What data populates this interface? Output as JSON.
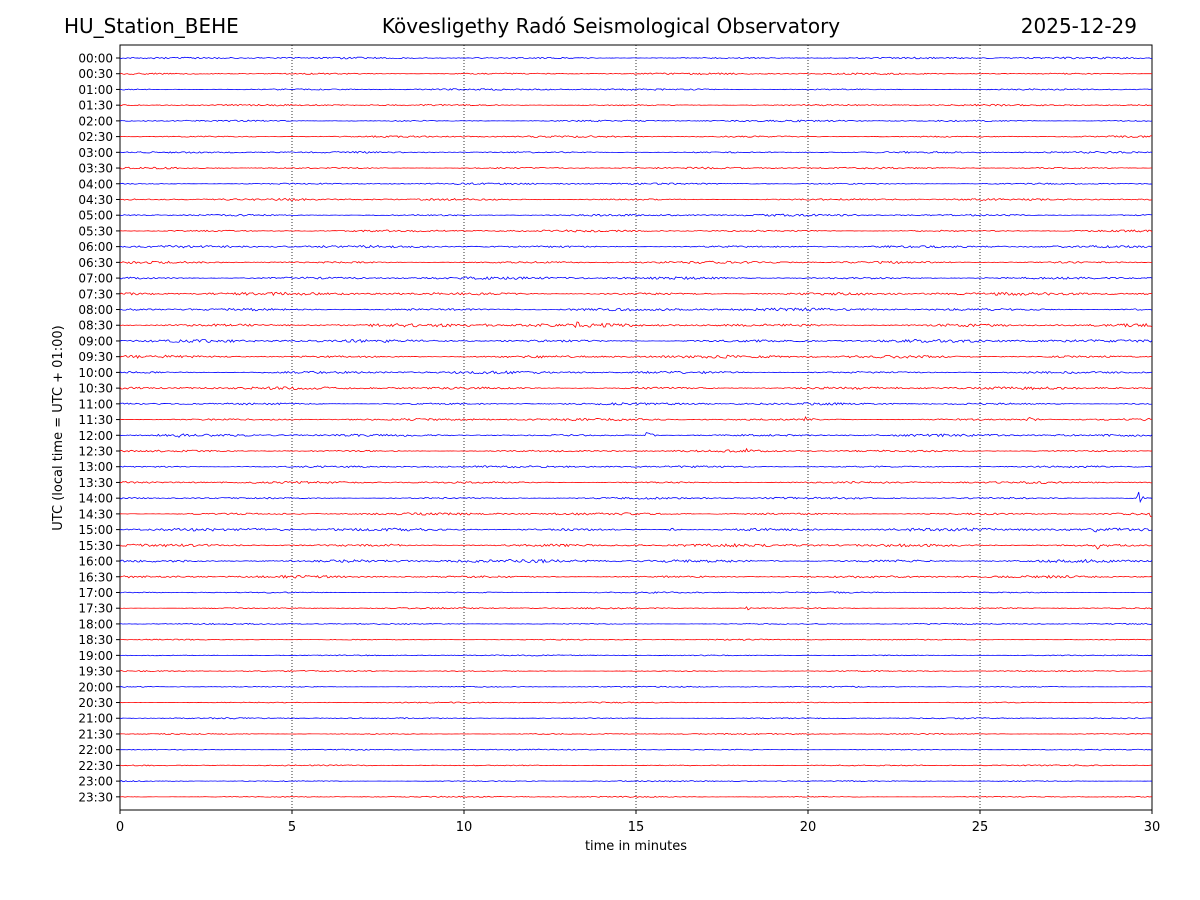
{
  "header": {
    "station": "HU_Station_BEHE",
    "title": "Kövesligethy Radó Seismological Observatory",
    "date": "2025-12-29"
  },
  "chart_data": {
    "type": "line",
    "title": "Kövesligethy Radó Seismological Observatory",
    "xlabel": "time in minutes",
    "ylabel": "UTC (local time = UTC + 01:00)",
    "xlim": [
      0,
      30
    ],
    "xticks": [
      0,
      5,
      10,
      15,
      20,
      25,
      30
    ],
    "grid": "vertical dotted at 5-minute ticks",
    "colors": [
      "#0000ff",
      "#ff0000"
    ],
    "rows": [
      "00:00",
      "00:30",
      "01:00",
      "01:30",
      "02:00",
      "02:30",
      "03:00",
      "03:30",
      "04:00",
      "04:30",
      "05:00",
      "05:30",
      "06:00",
      "06:30",
      "07:00",
      "07:30",
      "08:00",
      "08:30",
      "09:00",
      "09:30",
      "10:00",
      "10:30",
      "11:00",
      "11:30",
      "12:00",
      "12:30",
      "13:00",
      "13:30",
      "14:00",
      "14:30",
      "15:00",
      "15:30",
      "16:00",
      "16:30",
      "17:00",
      "17:30",
      "18:00",
      "18:30",
      "19:00",
      "19:30",
      "20:00",
      "20:30",
      "21:00",
      "21:30",
      "22:00",
      "22:30",
      "23:00",
      "23:30"
    ],
    "noise_level": [
      0.6,
      0.6,
      0.6,
      0.6,
      0.6,
      0.6,
      0.6,
      0.6,
      0.6,
      0.7,
      0.7,
      0.7,
      0.8,
      0.8,
      0.9,
      1.0,
      1.0,
      1.2,
      1.0,
      1.0,
      0.9,
      0.9,
      0.8,
      0.8,
      0.8,
      0.7,
      0.7,
      0.7,
      0.7,
      0.8,
      1.0,
      1.0,
      1.1,
      0.8,
      0.5,
      0.5,
      0.4,
      0.4,
      0.4,
      0.4,
      0.4,
      0.4,
      0.4,
      0.4,
      0.4,
      0.4,
      0.4,
      0.4
    ],
    "events": [
      {
        "row": "08:30",
        "minute": 13.3,
        "amplitude": 3.0
      },
      {
        "row": "08:30",
        "minute": 10.6,
        "amplitude": 1.5
      },
      {
        "row": "11:30",
        "minute": 19.9,
        "amplitude": 4.0
      },
      {
        "row": "11:30",
        "minute": 26.4,
        "amplitude": 3.5
      },
      {
        "row": "11:30",
        "minute": 14.9,
        "amplitude": 1.5
      },
      {
        "row": "12:00",
        "minute": 15.3,
        "amplitude": 5.0
      },
      {
        "row": "12:00",
        "minute": 1.6,
        "amplitude": 2.5
      },
      {
        "row": "12:30",
        "minute": 18.2,
        "amplitude": 4.0
      },
      {
        "row": "14:00",
        "minute": 29.6,
        "amplitude": 5.0
      },
      {
        "row": "14:30",
        "minute": 29.95,
        "amplitude": 3.0
      },
      {
        "row": "15:00",
        "minute": 28.3,
        "amplitude": 5.0
      },
      {
        "row": "15:00",
        "minute": 22.8,
        "amplitude": 2.0
      },
      {
        "row": "15:00",
        "minute": 2.7,
        "amplitude": 2.0
      },
      {
        "row": "15:00",
        "minute": 7.9,
        "amplitude": 1.8
      },
      {
        "row": "15:00",
        "minute": 16.0,
        "amplitude": 2.0
      },
      {
        "row": "15:30",
        "minute": 28.4,
        "amplitude": 3.0
      },
      {
        "row": "15:30",
        "minute": 7.9,
        "amplitude": 1.5
      },
      {
        "row": "16:00",
        "minute": 11.3,
        "amplitude": 2.0
      },
      {
        "row": "16:00",
        "minute": 1.6,
        "amplitude": 1.8
      },
      {
        "row": "17:30",
        "minute": 18.2,
        "amplitude": 1.5
      }
    ]
  }
}
